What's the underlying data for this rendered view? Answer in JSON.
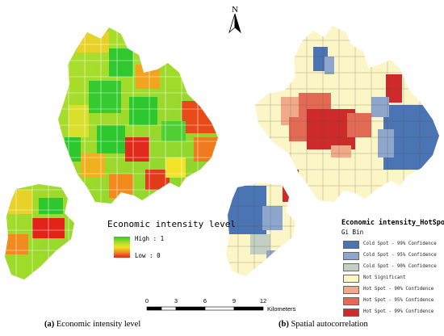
{
  "north_arrow": {
    "label": "N"
  },
  "panel_a": {
    "legend": {
      "title": "Economic intensity level",
      "high_label": "High : 1",
      "low_label": "Low : 0",
      "ramp_colors": [
        "#2dc82d",
        "#9fdc2a",
        "#f2e22a",
        "#f28a1e",
        "#e2231a"
      ]
    },
    "caption": {
      "letter": "(a)",
      "text": " Economic intensity level"
    }
  },
  "panel_b": {
    "legend": {
      "title": "Economic intensity_HotSpots",
      "subtitle": "Gi Bin",
      "classes": [
        {
          "label": "Cold Spot - 99% Confidence",
          "color": "#4a74b4"
        },
        {
          "label": "Cold Spot - 95% Confidence",
          "color": "#8ea6cc"
        },
        {
          "label": "Cold Spot - 90% Confidence",
          "color": "#c3cfc3"
        },
        {
          "label": "Not Significant",
          "color": "#fcf5c6"
        },
        {
          "label": "Hot Spot - 90% Confidence",
          "color": "#f2a98a"
        },
        {
          "label": "Hot Spot - 95% Confidence",
          "color": "#e36a55"
        },
        {
          "label": "Hot Spot - 99% Confidence",
          "color": "#cd2a2a"
        }
      ]
    },
    "caption": {
      "letter": "(b)",
      "text": " Spatial autocorrelation"
    }
  },
  "scale_bar": {
    "ticks": [
      "0",
      "3",
      "6",
      "9",
      "12"
    ],
    "unit": "Kilometers"
  }
}
